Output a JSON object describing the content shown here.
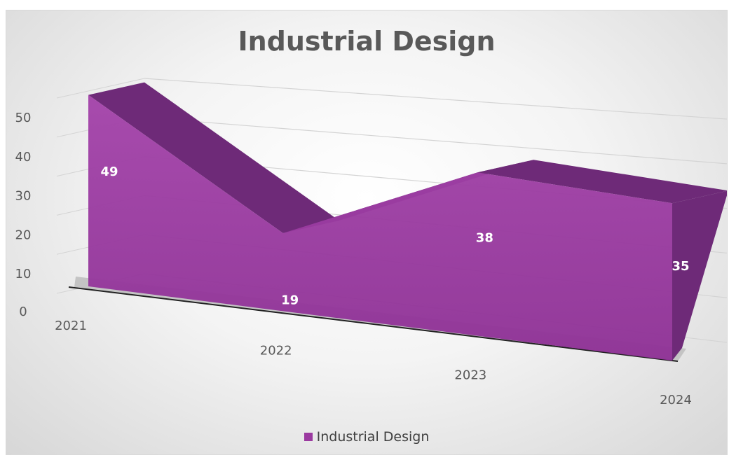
{
  "chart_data": {
    "type": "area",
    "title": "Industrial Design",
    "categories": [
      "2021",
      "2022",
      "2023",
      "2024"
    ],
    "series": [
      {
        "name": "Industrial Design",
        "values": [
          49,
          19,
          38,
          35
        ]
      }
    ],
    "y_ticks": [
      "0",
      "10",
      "20",
      "30",
      "40",
      "50"
    ],
    "ylim": [
      0,
      50
    ],
    "grid": true,
    "legend": "bottom",
    "three_d": true
  },
  "colors": {
    "series_front": "#9b3aa0",
    "series_top": "#6e2a78",
    "floor": "#c4c4c4",
    "gridline": "#d4d4d4",
    "axis_text": "#595959",
    "data_label": "#ffffff"
  }
}
